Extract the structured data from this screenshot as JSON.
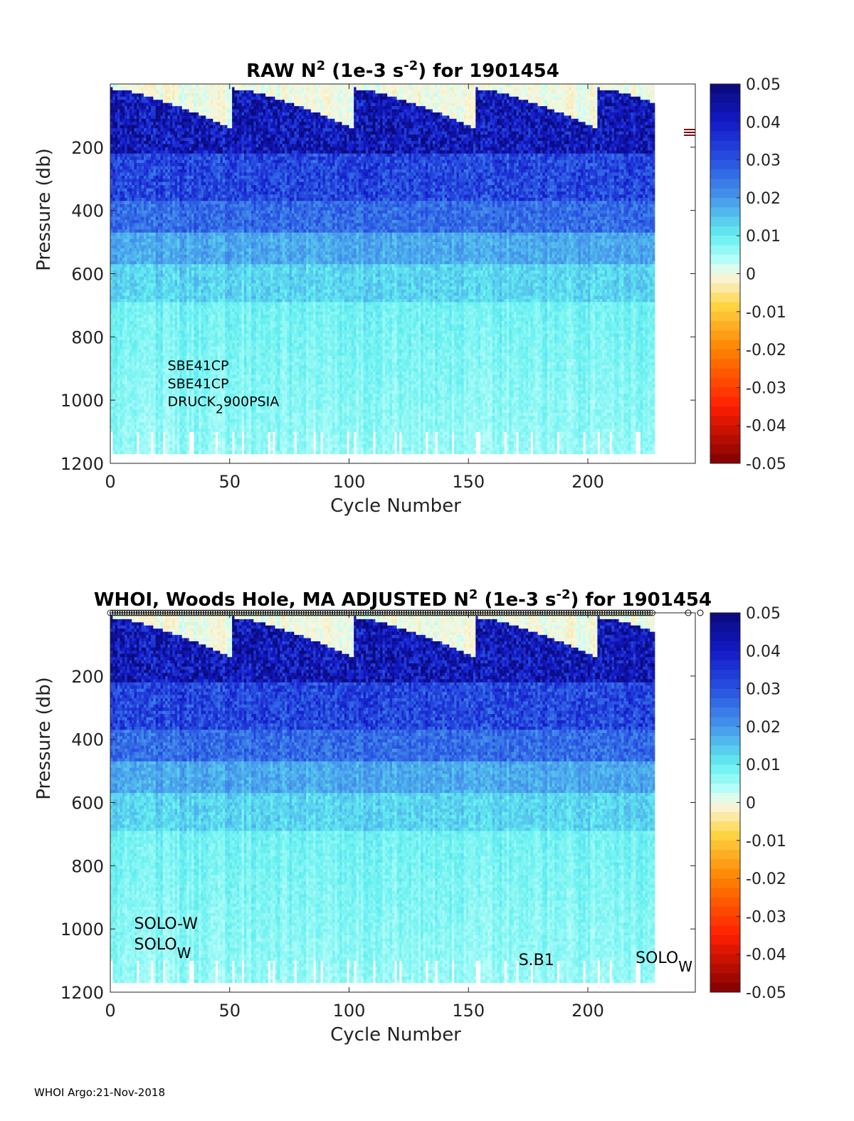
{
  "chart_data": [
    {
      "type": "heatmap",
      "title_parts": [
        "RAW N",
        "2",
        " (1e-3 s",
        "-2",
        ") for 1901454"
      ],
      "xlabel": "Cycle Number",
      "ylabel": "Pressure (db)",
      "xlim": [
        0,
        245
      ],
      "ylim": [
        1200,
        0
      ],
      "y_reversed": true,
      "x_ticks": [
        0,
        50,
        100,
        150,
        200
      ],
      "y_ticks": [
        200,
        400,
        600,
        800,
        1000,
        1200
      ],
      "colorbar": {
        "range": [
          -0.05,
          0.05
        ],
        "ticks": [
          "0.05",
          "0.04",
          "0.03",
          "0.02",
          "0.01",
          "0",
          "-0.01",
          "-0.02",
          "-0.03",
          "-0.04",
          "-0.05"
        ]
      },
      "annotations": [
        {
          "text": "SBE41CP",
          "x": 24,
          "y": 905
        },
        {
          "text": "SBE41CP",
          "x": 24,
          "y": 962
        },
        {
          "text": "DRUCK",
          "sub": "2",
          "after": "900PSIA",
          "x": 24,
          "y": 1019
        }
      ],
      "cycles": 228,
      "depth_max": 1170
    },
    {
      "type": "heatmap",
      "title_parts": [
        "WHOI, Woods Hole, MA  ADJUSTED N",
        "2",
        " (1e-3 s",
        "-2",
        ") for 1901454"
      ],
      "xlabel": "Cycle Number",
      "ylabel": "Pressure (db)",
      "xlim": [
        0,
        245
      ],
      "ylim": [
        1200,
        0
      ],
      "y_reversed": true,
      "x_ticks": [
        0,
        50,
        100,
        150,
        200
      ],
      "y_ticks": [
        200,
        400,
        600,
        800,
        1000,
        1200
      ],
      "colorbar": {
        "range": [
          -0.05,
          0.05
        ],
        "ticks": [
          "0.05",
          "0.04",
          "0.03",
          "0.02",
          "0.01",
          "0",
          "-0.01",
          "-0.02",
          "-0.03",
          "-0.04",
          "-0.05"
        ]
      },
      "annotations": [
        {
          "text": "SOLO-W",
          "x": 10,
          "y": 1000
        },
        {
          "text": "SOLO",
          "sub": "W",
          "x": 10,
          "y": 1065
        },
        {
          "text": "S.B1",
          "x": 171,
          "y": 1115
        },
        {
          "text": "SOLO",
          "sub": "W",
          "x": 220,
          "y": 1108
        }
      ],
      "cycles": 228,
      "depth_max": 1170
    }
  ],
  "footer": "WHOI Argo:21-Nov-2018"
}
